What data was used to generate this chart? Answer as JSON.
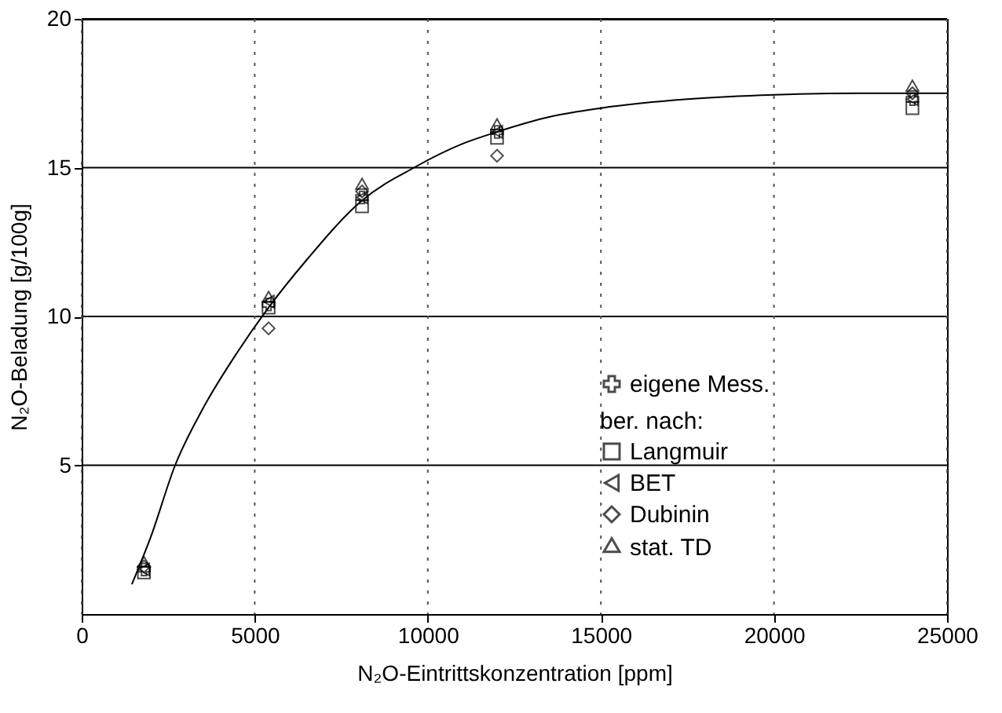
{
  "chart_data": {
    "type": "scatter",
    "xlabel": "N₂O-Eintrittskonzentration [ppm]",
    "ylabel": "N₂O-Beladung [g/100g]",
    "x": [
      1800,
      5400,
      8100,
      12000,
      24000
    ],
    "series": [
      {
        "name": "eigene Mess.",
        "color": "#000000",
        "marker": "cross",
        "values": [
          1.5,
          10.4,
          14.0,
          16.2,
          17.3
        ]
      },
      {
        "name": "Langmuir",
        "color": "#000000",
        "marker": "square",
        "values": [
          1.4,
          10.3,
          13.7,
          16.0,
          17.0
        ]
      },
      {
        "name": "BET",
        "color": "#000000",
        "marker": "triangle-left",
        "values": [
          1.5,
          10.5,
          14.0,
          16.2,
          17.3
        ]
      },
      {
        "name": "Dubinin",
        "color": "#000000",
        "marker": "diamond",
        "values": [
          1.6,
          9.6,
          14.2,
          15.4,
          17.5
        ]
      },
      {
        "name": "stat. TD",
        "color": "#000000",
        "marker": "triangle",
        "values": [
          1.7,
          10.6,
          14.4,
          16.4,
          17.7
        ]
      },
      {
        "type": "line",
        "color": "#000000",
        "line_style": "solid",
        "x": [
          1450,
          2000,
          2700,
          3500,
          4500,
          5400,
          6500,
          8100,
          9600,
          11000,
          12000,
          13500,
          15000,
          17500,
          20000,
          22500,
          25000
        ],
        "values": [
          1.0,
          2.6,
          5.0,
          6.9,
          8.8,
          10.3,
          11.9,
          13.9,
          15.0,
          15.8,
          16.2,
          16.7,
          17.0,
          17.3,
          17.45,
          17.5,
          17.5
        ]
      }
    ],
    "legend_title": "ber. nach:",
    "legend": "bottom right",
    "xlim": [
      0,
      25000
    ],
    "xticks": [
      0,
      5000,
      10000,
      15000,
      20000,
      25000
    ],
    "ylim": [
      0,
      20
    ],
    "yticks": [
      5,
      10,
      15,
      20
    ],
    "grid": true
  }
}
